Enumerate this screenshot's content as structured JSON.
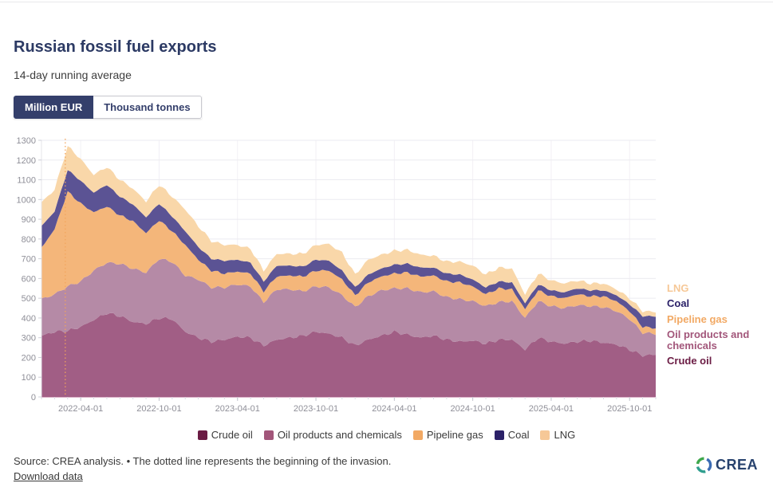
{
  "header": {
    "title": "Russian fossil fuel exports",
    "subtitle": "14-day running average"
  },
  "unit_toggle": {
    "active": "Million EUR",
    "inactive": "Thousand tonnes"
  },
  "footer": {
    "source": "Source: CREA analysis. • The dotted line represents the beginning of the invasion.",
    "download": "Download data",
    "brand": "CREA"
  },
  "chart_data": {
    "type": "area",
    "stacked": true,
    "title": "Russian fossil fuel exports",
    "subtitle": "14-day running average",
    "unit": "Million EUR",
    "ylim": [
      0,
      1300
    ],
    "y_ticks": [
      0,
      100,
      200,
      300,
      400,
      500,
      600,
      700,
      800,
      900,
      1000,
      1100,
      1200,
      1300
    ],
    "x_ticks": [
      {
        "label": "2022-04-01",
        "month": 3
      },
      {
        "label": "2022-10-01",
        "month": 9
      },
      {
        "label": "2023-04-01",
        "month": 15
      },
      {
        "label": "2023-10-01",
        "month": 21
      },
      {
        "label": "2024-04-01",
        "month": 27
      },
      {
        "label": "2024-10-01",
        "month": 33
      },
      {
        "label": "2025-04-01",
        "month": 39
      },
      {
        "label": "2025-10-01",
        "month": 45
      }
    ],
    "x": [
      "2022-01",
      "2022-02",
      "2022-03",
      "2022-04",
      "2022-05",
      "2022-06",
      "2022-07",
      "2022-08",
      "2022-09",
      "2022-10",
      "2022-11",
      "2022-12",
      "2023-01",
      "2023-02",
      "2023-03",
      "2023-04",
      "2023-05",
      "2023-06",
      "2023-07",
      "2023-08",
      "2023-09",
      "2023-10",
      "2023-11",
      "2023-12",
      "2024-01",
      "2024-02",
      "2024-03",
      "2024-04",
      "2024-05",
      "2024-06",
      "2024-07",
      "2024-08",
      "2024-09",
      "2024-10",
      "2024-11",
      "2024-12",
      "2025-01",
      "2025-02",
      "2025-03",
      "2025-04",
      "2025-05",
      "2025-06",
      "2025-07",
      "2025-08",
      "2025-09",
      "2025-10",
      "2025-11",
      "2025-11-20"
    ],
    "series": [
      {
        "name": "Crude oil",
        "color": "#6b1c44",
        "fill": "#a15e85",
        "values": [
          310,
          330,
          335,
          355,
          390,
          425,
          410,
          380,
          370,
          400,
          395,
          330,
          300,
          280,
          290,
          305,
          300,
          260,
          290,
          300,
          310,
          330,
          320,
          300,
          260,
          290,
          310,
          330,
          315,
          300,
          310,
          290,
          280,
          285,
          270,
          290,
          290,
          240,
          300,
          280,
          270,
          280,
          285,
          275,
          265,
          240,
          210,
          215
        ]
      },
      {
        "name": "Oil products and chemicals",
        "color": "#a2567a",
        "fill": "#b58aa6",
        "values": [
          185,
          190,
          225,
          230,
          250,
          255,
          265,
          270,
          260,
          300,
          290,
          285,
          295,
          275,
          265,
          265,
          260,
          220,
          255,
          245,
          225,
          230,
          235,
          215,
          195,
          220,
          230,
          220,
          235,
          230,
          225,
          215,
          215,
          200,
          190,
          190,
          195,
          160,
          185,
          180,
          180,
          185,
          175,
          180,
          170,
          155,
          115,
          105
        ]
      },
      {
        "name": "Pipeline gas",
        "color": "#f2a964",
        "fill": "#f4b67a",
        "values": [
          260,
          330,
          480,
          395,
          295,
          285,
          245,
          240,
          200,
          195,
          155,
          155,
          100,
          85,
          70,
          65,
          65,
          55,
          65,
          70,
          75,
          80,
          85,
          80,
          60,
          70,
          70,
          75,
          80,
          80,
          80,
          80,
          85,
          75,
          60,
          70,
          60,
          45,
          55,
          50,
          50,
          55,
          50,
          55,
          50,
          40,
          30,
          28
        ]
      },
      {
        "name": "Coal",
        "color": "#2b2168",
        "fill": "#5b5394",
        "values": [
          110,
          90,
          110,
          115,
          100,
          110,
          95,
          85,
          80,
          85,
          75,
          70,
          65,
          60,
          65,
          60,
          55,
          50,
          55,
          50,
          50,
          55,
          50,
          45,
          40,
          40,
          40,
          45,
          45,
          45,
          40,
          40,
          40,
          35,
          35,
          35,
          35,
          30,
          30,
          30,
          30,
          30,
          30,
          30,
          30,
          35,
          55,
          60
        ]
      },
      {
        "name": "LNG",
        "color": "#f6c897",
        "fill": "#f9d7a9",
        "values": [
          120,
          110,
          120,
          110,
          90,
          90,
          85,
          80,
          80,
          95,
          100,
          110,
          105,
          90,
          80,
          75,
          70,
          55,
          60,
          60,
          65,
          75,
          85,
          90,
          65,
          75,
          70,
          70,
          70,
          65,
          60,
          60,
          65,
          70,
          65,
          70,
          70,
          45,
          55,
          50,
          45,
          40,
          35,
          35,
          30,
          30,
          25,
          22
        ]
      }
    ],
    "legend": [
      "Crude oil",
      "Oil products and chemicals",
      "Pipeline gas",
      "Coal",
      "LNG"
    ],
    "end_labels": [
      "LNG",
      "Coal",
      "Pipeline gas",
      "Oil products and chemicals",
      "Crude oil"
    ],
    "annotation": {
      "name": "invasion-start",
      "date": "2022-02-24",
      "month_pos": 1.82,
      "style": "dotted",
      "color": "#f2a55c"
    }
  }
}
